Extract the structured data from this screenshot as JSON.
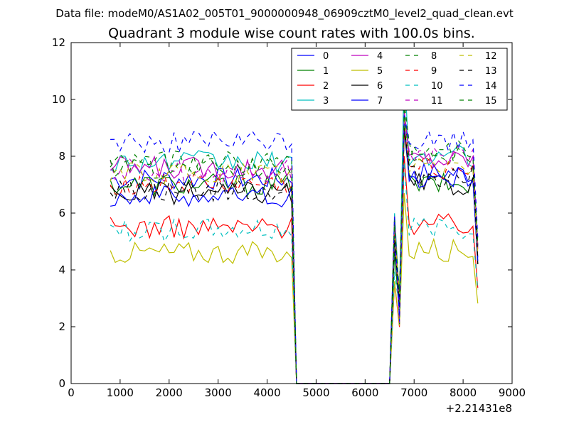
{
  "header": {
    "datafile": "Data file: modeM0/AS1A02_005T01_9000000948_06909cztM0_level2_quad_clean.evt",
    "title": "Quadrant 3 module wise count rates with 100.0s bins."
  },
  "chart_data": {
    "type": "line",
    "title": "Quadrant 3 module wise count rates with 100.0s bins.",
    "xlabel": "",
    "ylabel": "",
    "x_offset_label": "+2.21431e8",
    "xlim": [
      0,
      9000
    ],
    "ylim": [
      0,
      12
    ],
    "xticks": [
      0,
      1000,
      2000,
      3000,
      4000,
      5000,
      6000,
      7000,
      8000,
      9000
    ],
    "yticks": [
      0,
      2,
      4,
      6,
      8,
      10,
      12
    ],
    "xtick_labels": [
      "0",
      "1000",
      "2000",
      "3000",
      "4000",
      "5000",
      "6000",
      "7000",
      "8000",
      "9000"
    ],
    "ytick_labels": [
      "0",
      "2",
      "4",
      "6",
      "8",
      "10",
      "12"
    ],
    "legend_position": "top-right",
    "segments": [
      {
        "x_start": 800,
        "x_end": 4550,
        "step": 100
      },
      {
        "x": [
          4600,
          6500
        ]
      },
      {
        "x_start": 6500,
        "x_end": 8300,
        "step": 100
      }
    ],
    "series": [
      {
        "name": "0",
        "color": "#0000ff",
        "style": "solid",
        "level1": 7.2,
        "level2": 7.4,
        "spike": 9.2
      },
      {
        "name": "1",
        "color": "#008000",
        "style": "solid",
        "level1": 7.0,
        "level2": 7.0,
        "spike": 9.0
      },
      {
        "name": "2",
        "color": "#ff0000",
        "style": "solid",
        "level1": 5.5,
        "level2": 5.6,
        "spike": 8.0
      },
      {
        "name": "3",
        "color": "#00bfbf",
        "style": "solid",
        "level1": 7.8,
        "level2": 8.0,
        "spike": 11.2
      },
      {
        "name": "4",
        "color": "#bf00bf",
        "style": "solid",
        "level1": 7.6,
        "level2": 7.9,
        "spike": 9.6
      },
      {
        "name": "5",
        "color": "#bfbf00",
        "style": "solid",
        "level1": 4.6,
        "level2": 4.7,
        "spike": 6.7
      },
      {
        "name": "6",
        "color": "#000000",
        "style": "solid",
        "level1": 6.7,
        "level2": 7.0,
        "spike": 8.9
      },
      {
        "name": "7",
        "color": "#0000ff",
        "style": "solid",
        "level1": 6.6,
        "level2": 7.2,
        "spike": 9.3
      },
      {
        "name": "8",
        "color": "#008000",
        "style": "dashed",
        "level1": 7.8,
        "level2": 8.1,
        "spike": 9.9
      },
      {
        "name": "9",
        "color": "#ff0000",
        "style": "dashed",
        "level1": 7.0,
        "level2": 7.6,
        "spike": 9.0
      },
      {
        "name": "10",
        "color": "#00bfbf",
        "style": "dashed",
        "level1": 5.4,
        "level2": 5.5,
        "spike": 7.8
      },
      {
        "name": "11",
        "color": "#bf00bf",
        "style": "dashed",
        "level1": 7.5,
        "level2": 8.0,
        "spike": 9.4
      },
      {
        "name": "12",
        "color": "#bfbf00",
        "style": "dashed",
        "level1": 7.4,
        "level2": 7.6,
        "spike": 9.3
      },
      {
        "name": "13",
        "color": "#000000",
        "style": "dashed",
        "level1": 6.8,
        "level2": 7.3,
        "spike": 9.0
      },
      {
        "name": "14",
        "color": "#0000ff",
        "style": "dashed",
        "level1": 8.5,
        "level2": 8.5,
        "spike": 9.5
      },
      {
        "name": "15",
        "color": "#008000",
        "style": "dashed",
        "level1": 7.6,
        "level2": 8.2,
        "spike": 9.6
      }
    ]
  }
}
